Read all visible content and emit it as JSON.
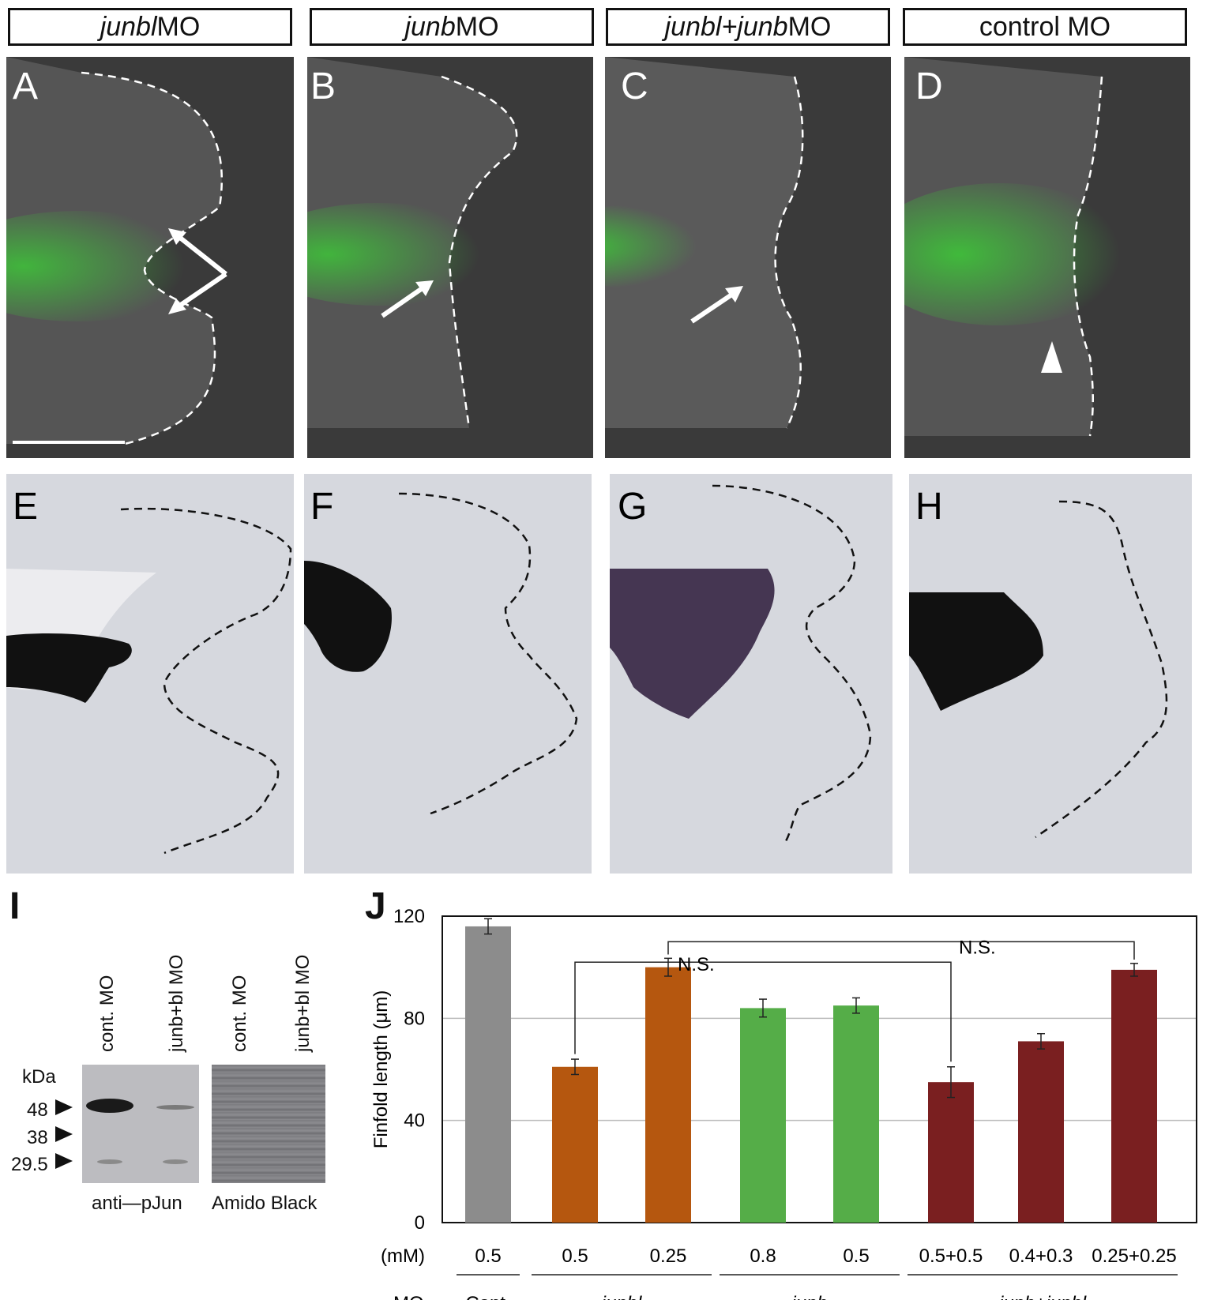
{
  "headers": [
    {
      "ital": "junbl",
      "rest": " MO"
    },
    {
      "ital": "junb",
      "rest": " MO"
    },
    {
      "ital": "junbl+junb",
      "rest": " MO"
    },
    {
      "ital": "",
      "rest": "control MO"
    }
  ],
  "panel_labels": {
    "A": "A",
    "B": "B",
    "C": "C",
    "D": "D",
    "E": "E",
    "F": "F",
    "G": "G",
    "H": "H",
    "I": "I",
    "J": "J"
  },
  "blot": {
    "lanes_left": [
      "cont. MO",
      "junb+bl MO"
    ],
    "lanes_right": [
      "cont. MO",
      "junb+bl MO"
    ],
    "kda_label": "kDa",
    "markers": [
      "48",
      "38",
      "29.5"
    ],
    "left_caption": "anti—pJun",
    "right_caption": "Amido Black"
  },
  "chart_data": {
    "type": "bar",
    "ylabel": "Finfold length (μm)",
    "ylim": [
      0,
      120
    ],
    "yticks": [
      "0",
      "40",
      "80",
      "120"
    ],
    "unit_label": "(mM)",
    "mo_label": "MO",
    "categories": [
      "0.5",
      "0.5",
      "0.25",
      "0.8",
      "0.5",
      "0.5+0.5",
      "0.4+0.3",
      "0.25+0.25"
    ],
    "values": [
      116,
      61,
      100,
      84,
      85,
      55,
      71,
      99
    ],
    "errors": [
      3,
      3,
      3.5,
      3.5,
      3,
      6,
      3,
      2.5
    ],
    "groups": [
      {
        "name": "Cont.",
        "italic": false,
        "color": "#8c8c8c",
        "bars": [
          0
        ]
      },
      {
        "name": "junbl",
        "italic": true,
        "color": "#b5570f",
        "bars": [
          1,
          2
        ]
      },
      {
        "name": "junb",
        "italic": true,
        "color": "#55ad48",
        "bars": [
          3,
          4
        ]
      },
      {
        "name": "junb+junbl",
        "italic": true,
        "color": "#7a1f20",
        "bars": [
          5,
          6,
          7
        ]
      }
    ],
    "annotations": [
      "N.S.",
      "N.S."
    ],
    "grid": true
  }
}
